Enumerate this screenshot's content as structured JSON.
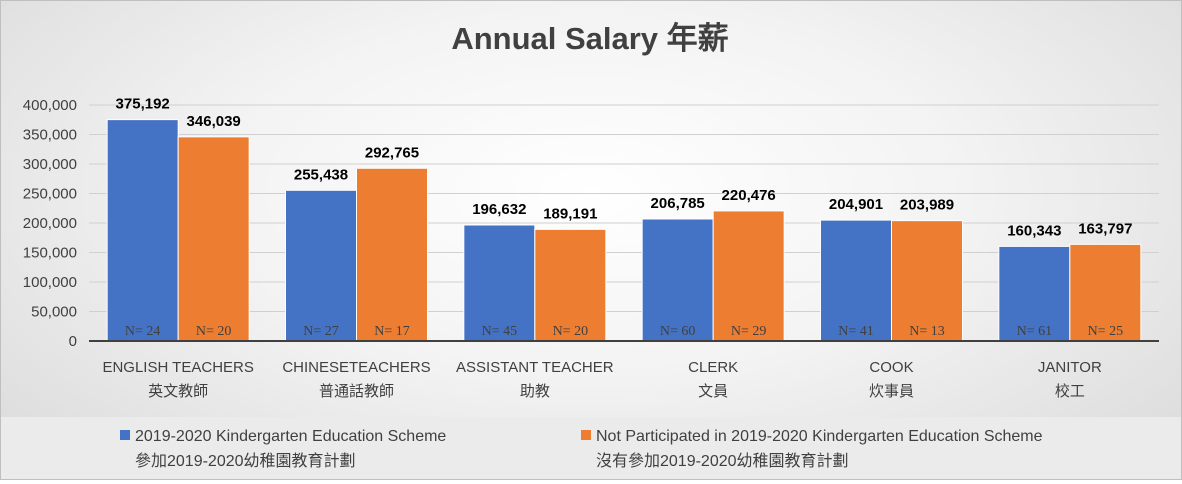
{
  "chart_data": {
    "type": "bar",
    "title": "Annual Salary 年薪",
    "xlabel": "",
    "ylabel": "",
    "ylim": [
      0,
      400000
    ],
    "yticks": [
      0,
      50000,
      100000,
      150000,
      200000,
      250000,
      300000,
      350000,
      400000
    ],
    "ytick_labels": [
      "0",
      "50,000",
      "100,000",
      "150,000",
      "200,000",
      "250,000",
      "300,000",
      "350,000",
      "400,000"
    ],
    "grid": true,
    "legend_position": "bottom",
    "categories": [
      {
        "en": "ENGLISH TEACHERS",
        "zh": "英文教師"
      },
      {
        "en": "CHINESETEACHERS",
        "zh": "普通話教師"
      },
      {
        "en": "ASSISTANT TEACHER",
        "zh": "助教"
      },
      {
        "en": "CLERK",
        "zh": "文員"
      },
      {
        "en": "COOK",
        "zh": "炊事員"
      },
      {
        "en": "JANITOR",
        "zh": "校工"
      }
    ],
    "series": [
      {
        "name": "2019-2020 Kindergarten Education Scheme",
        "name_zh": "參加2019-2020幼稚園教育計劃",
        "color": "#4472C4",
        "values": [
          375192,
          255438,
          196632,
          206785,
          204901,
          160343
        ],
        "value_labels": [
          "375,192",
          "255,438",
          "196,632",
          "206,785",
          "204,901",
          "160,343"
        ],
        "n_labels": [
          "N= 24",
          "N= 27",
          "N= 45",
          "N= 60",
          "N= 41",
          "N= 61"
        ]
      },
      {
        "name": "Not Participated in 2019-2020 Kindergarten Education Scheme",
        "name_zh": "沒有參加2019-2020幼稚園教育計劃",
        "color": "#ED7D31",
        "values": [
          346039,
          292765,
          189191,
          220476,
          203989,
          163797
        ],
        "value_labels": [
          "346,039",
          "292,765",
          "189,191",
          "220,476",
          "203,989",
          "163,797"
        ],
        "n_labels": [
          "N= 20",
          "N= 17",
          "N= 20",
          "N= 29",
          "N= 13",
          "N= 25"
        ]
      }
    ]
  }
}
